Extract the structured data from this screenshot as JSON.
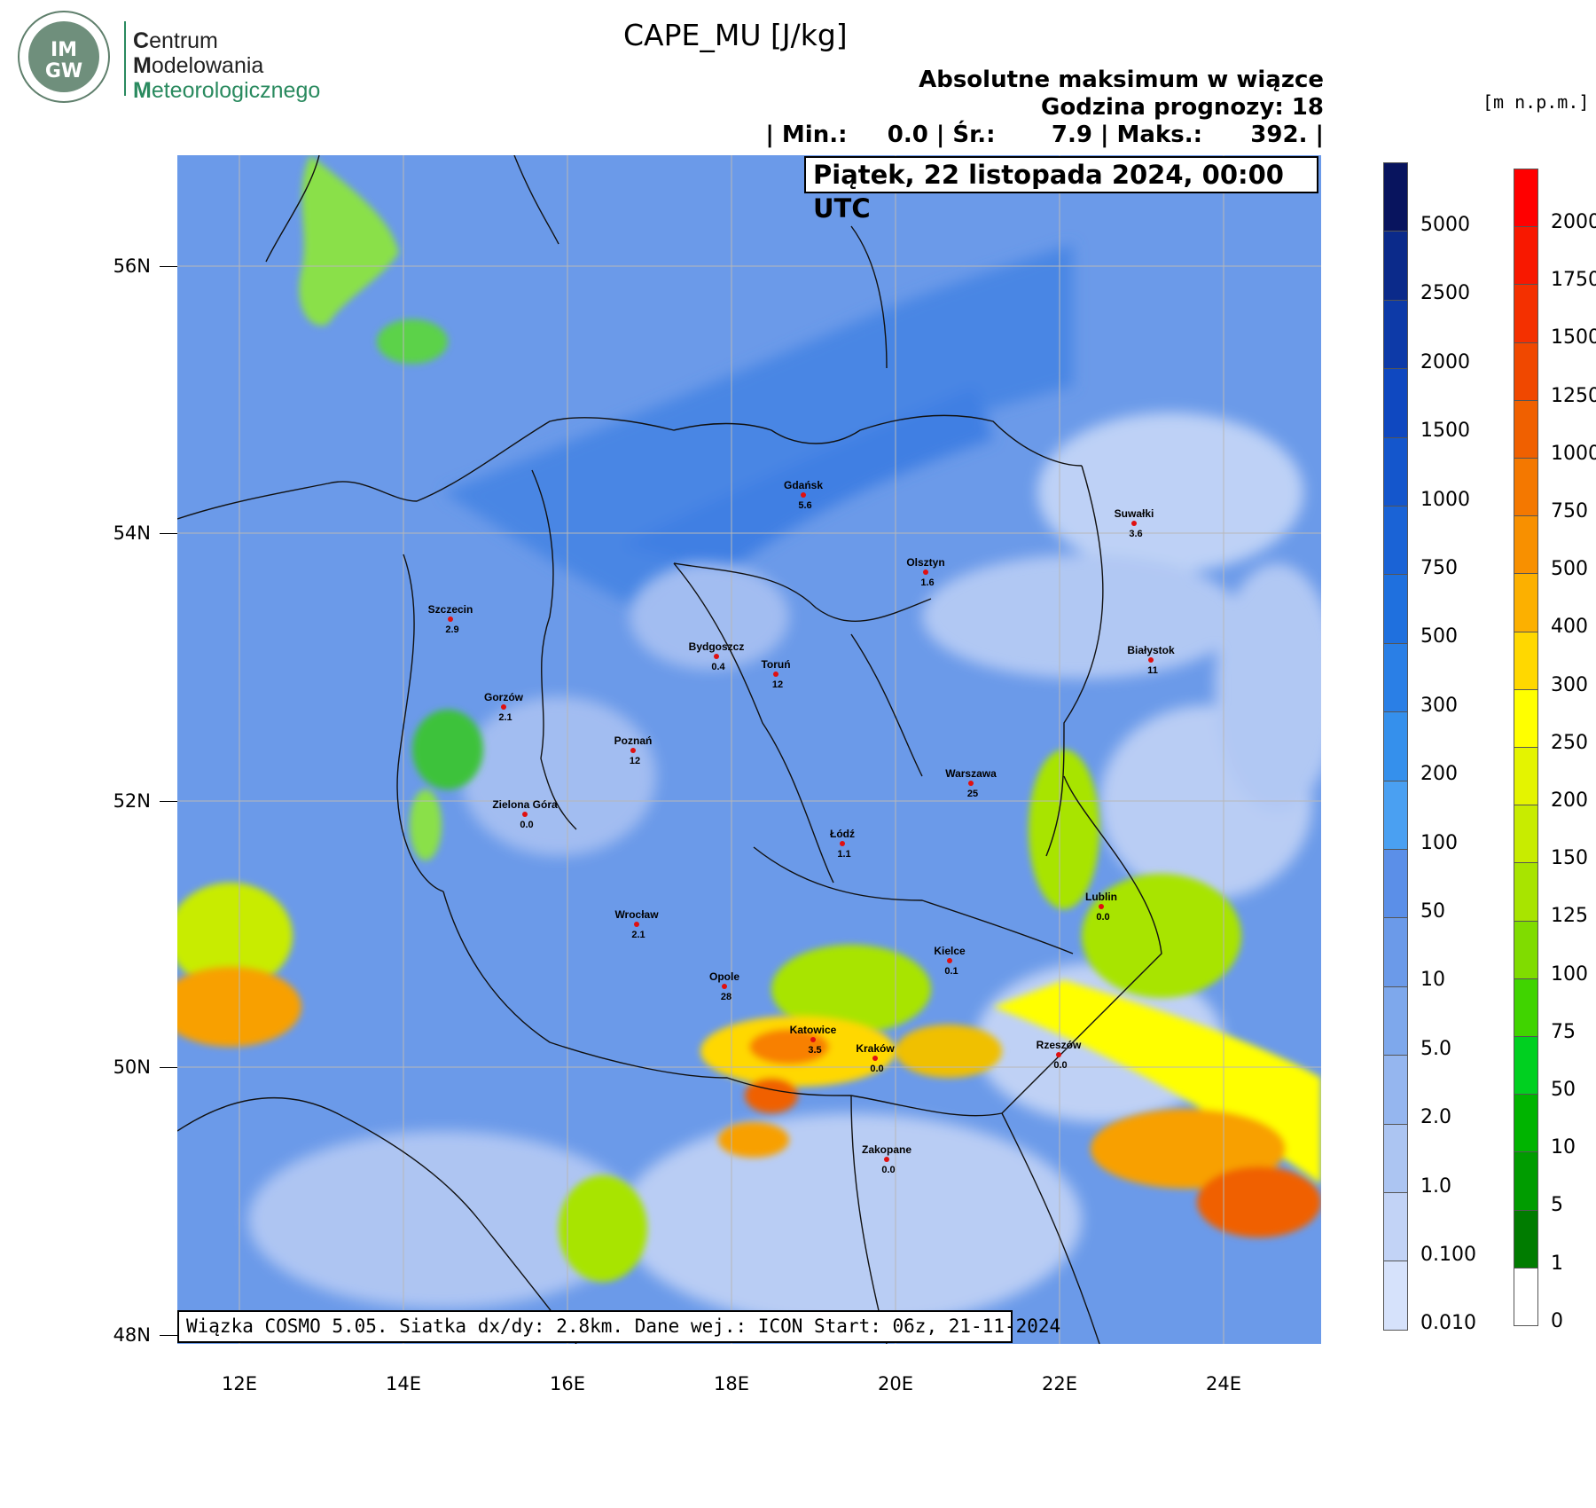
{
  "logo": {
    "circle_line1": "IM",
    "circle_line2": "GW",
    "line1_initial": "C",
    "line1_rest": "entrum",
    "line2_initial": "M",
    "line2_rest": "odelowania",
    "line3_initial": "M",
    "line3_rest": "eteorologicznego"
  },
  "title": "CAPE_MU [J/kg]",
  "subtitle": "Absolutne maksimum w wiązce",
  "forecast_hour": "Godzina prognozy: 18",
  "stats": "| Min.:     0.0 | Śr.:       7.9 | Maks.:      392. |",
  "date": "Piątek, 22 listopada 2024, 00:00 UTC",
  "footer": "Wiązka COSMO 5.05. Siatka dx/dy: 2.8km. Dane wej.: ICON Start: 06z, 21-11-2024",
  "units_label": "[m n.p.m.]",
  "axes": {
    "lat_labels": [
      "56N",
      "54N",
      "52N",
      "50N",
      "48N"
    ],
    "lon_labels": [
      "12E",
      "14E",
      "16E",
      "18E",
      "20E",
      "22E",
      "24E"
    ]
  },
  "cape_colorbar": {
    "labels": [
      "5000",
      "2500",
      "2000",
      "1500",
      "1000",
      "750",
      "500",
      "300",
      "200",
      "100",
      "50",
      "10",
      "5.0",
      "2.0",
      "1.0",
      "0.100",
      "0.010"
    ],
    "colors": [
      "#08145e",
      "#0b2a8a",
      "#0d3aa8",
      "#0f48c0",
      "#1456cc",
      "#1a63d6",
      "#1f70de",
      "#2a7fe6",
      "#3590ec",
      "#4aa0f2",
      "#5b8fe8",
      "#6b9ae9",
      "#7ea8ec",
      "#95b6ef",
      "#acc5f2",
      "#c2d3f6",
      "#d6e2fb"
    ]
  },
  "terrain_colorbar": {
    "labels": [
      "2000",
      "1750",
      "1500",
      "1250",
      "1000",
      "750",
      "500",
      "400",
      "300",
      "250",
      "200",
      "150",
      "125",
      "100",
      "75",
      "50",
      "10",
      "5",
      "1",
      "0"
    ],
    "colors": [
      "#ff0000",
      "#f81800",
      "#f43000",
      "#f04800",
      "#f06000",
      "#f47800",
      "#f89000",
      "#fcb000",
      "#ffd800",
      "#ffff00",
      "#e4f400",
      "#c8ec00",
      "#a8e400",
      "#80dc00",
      "#40d400",
      "#00d020",
      "#00b400",
      "#009c00",
      "#007c00",
      "#ffffff"
    ]
  },
  "cities": [
    {
      "name": "Gdańsk",
      "value": "5.6"
    },
    {
      "name": "Suwałki",
      "value": "3.6"
    },
    {
      "name": "Olsztyn",
      "value": "1.6"
    },
    {
      "name": "Szczecin",
      "value": "2.9"
    },
    {
      "name": "Bydgoszcz",
      "value": "0.4"
    },
    {
      "name": "Toruń",
      "value": "12"
    },
    {
      "name": "Białystok",
      "value": "11"
    },
    {
      "name": "Gorzów",
      "value": "2.1"
    },
    {
      "name": "Poznań",
      "value": "12"
    },
    {
      "name": "Warszawa",
      "value": "25"
    },
    {
      "name": "Zielona Góra",
      "value": "0.0"
    },
    {
      "name": "Łódź",
      "value": "1.1"
    },
    {
      "name": "Lublin",
      "value": "0.0"
    },
    {
      "name": "Wrocław",
      "value": "2.1"
    },
    {
      "name": "Kielce",
      "value": "0.1"
    },
    {
      "name": "Opole",
      "value": "28"
    },
    {
      "name": "Katowice",
      "value": "3.5"
    },
    {
      "name": "Kraków",
      "value": "0.0"
    },
    {
      "name": "Rzeszów",
      "value": "0.0"
    },
    {
      "name": "Zakopane",
      "value": "0.0"
    }
  ]
}
